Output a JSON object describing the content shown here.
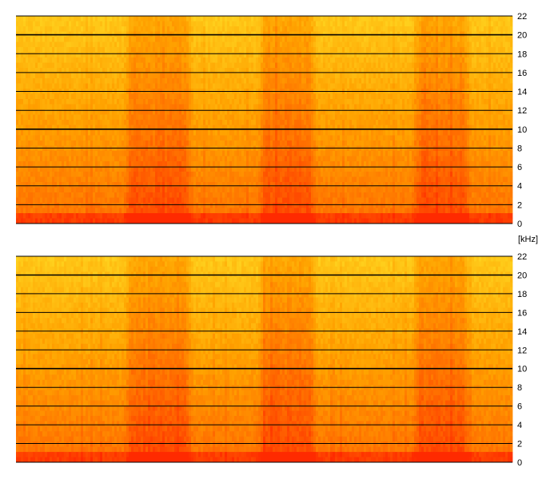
{
  "chart_data": [
    {
      "type": "heatmap",
      "channel": "top",
      "ylim": [
        0,
        22
      ],
      "yticks": [
        "0",
        "2",
        "4",
        "6",
        "8",
        "10",
        "12",
        "14",
        "16",
        "18",
        "20",
        "22"
      ],
      "grid": true,
      "colormap": [
        "#ff2a00",
        "#ff6a00",
        "#ffa200",
        "#ffd21e",
        "#ffff4a"
      ],
      "loud_regions": [
        [
          0.23,
          0.34
        ],
        [
          0.5,
          0.59
        ],
        [
          0.81,
          0.9
        ]
      ]
    },
    {
      "type": "heatmap",
      "channel": "bottom",
      "ylim": [
        0,
        22
      ],
      "yticks": [
        "0",
        "2",
        "4",
        "6",
        "8",
        "10",
        "12",
        "14",
        "16",
        "18",
        "20",
        "22"
      ],
      "grid": true,
      "colormap": [
        "#ff2a00",
        "#ff6a00",
        "#ffa200",
        "#ffd21e",
        "#ffff4a"
      ],
      "loud_regions": [
        [
          0.23,
          0.34
        ],
        [
          0.5,
          0.59
        ],
        [
          0.81,
          0.9
        ]
      ]
    }
  ],
  "y_unit": "[kHz]"
}
